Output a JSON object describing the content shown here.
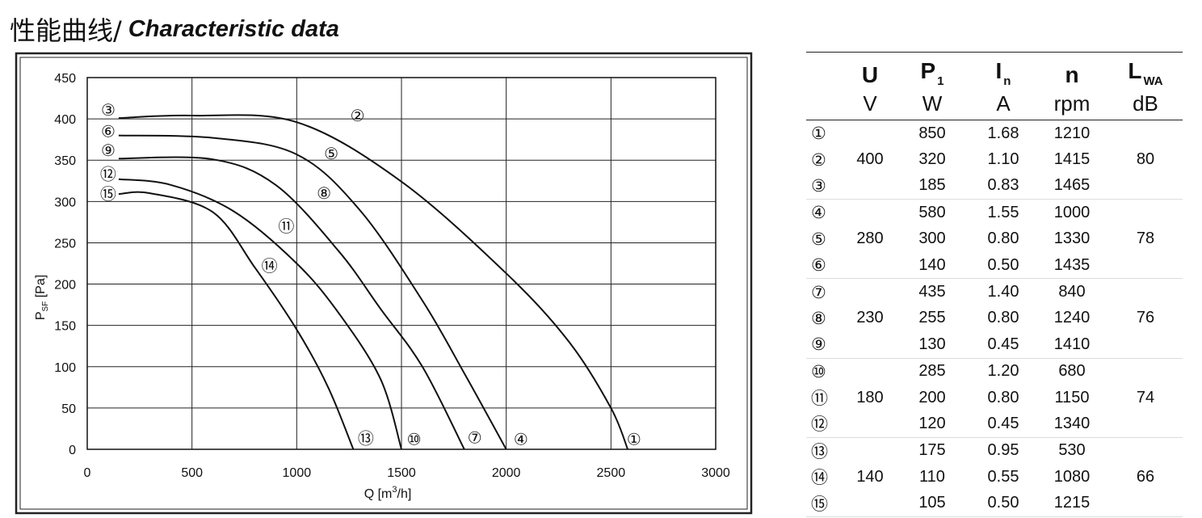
{
  "title": {
    "zh": "性能曲线/",
    "en": "Characteristic data"
  },
  "chart_data": {
    "type": "line",
    "xlabel_prefix": "Q [m",
    "xlabel_sup": "3",
    "xlabel_suffix": "/h]",
    "ylabel_main": "P",
    "ylabel_sub": "SF",
    "ylabel_suffix": " [Pa]",
    "xlim": [
      0,
      3000
    ],
    "ylim": [
      0,
      450
    ],
    "x_ticks": [
      0,
      500,
      1000,
      1500,
      2000,
      2500,
      3000
    ],
    "y_ticks": [
      0,
      50,
      100,
      150,
      200,
      250,
      300,
      350,
      400,
      450
    ],
    "grid": true,
    "series": [
      {
        "name": "①",
        "x": [
          150,
          500,
          1000,
          1500,
          2000,
          2300,
          2500,
          2580
        ],
        "y": [
          401,
          404,
          396,
          324,
          213,
          130,
          50,
          0
        ]
      },
      {
        "name": "④",
        "x": [
          150,
          600,
          1000,
          1300,
          1600,
          1800,
          2000
        ],
        "y": [
          380,
          377,
          357,
          290,
          180,
          92,
          0
        ]
      },
      {
        "name": "⑦",
        "x": [
          150,
          600,
          900,
          1200,
          1400,
          1600,
          1800
        ],
        "y": [
          352,
          351,
          320,
          240,
          170,
          100,
          0
        ]
      },
      {
        "name": "⑩",
        "x": [
          150,
          400,
          700,
          1000,
          1200,
          1400,
          1500
        ],
        "y": [
          327,
          320,
          288,
          225,
          165,
          85,
          0
        ]
      },
      {
        "name": "⑬",
        "x": [
          150,
          300,
          600,
          800,
          1000,
          1150,
          1270
        ],
        "y": [
          309,
          310,
          287,
          220,
          145,
          75,
          0
        ]
      }
    ],
    "curve_labels": [
      {
        "text": "①",
        "x": 2610,
        "y": 12
      },
      {
        "text": "②",
        "x": 1290,
        "y": 404
      },
      {
        "text": "③",
        "x": 100,
        "y": 411
      },
      {
        "text": "④",
        "x": 2070,
        "y": 12
      },
      {
        "text": "⑤",
        "x": 1165,
        "y": 358
      },
      {
        "text": "⑥",
        "x": 100,
        "y": 385
      },
      {
        "text": "⑦",
        "x": 1850,
        "y": 14
      },
      {
        "text": "⑧",
        "x": 1130,
        "y": 310
      },
      {
        "text": "⑨",
        "x": 100,
        "y": 362
      },
      {
        "text": "⑩",
        "x": 1560,
        "y": 12
      },
      {
        "text": "⑪",
        "x": 950,
        "y": 270
      },
      {
        "text": "⑫",
        "x": 100,
        "y": 333
      },
      {
        "text": "⑬",
        "x": 1330,
        "y": 13
      },
      {
        "text": "⑭",
        "x": 870,
        "y": 222
      },
      {
        "text": "⑮",
        "x": 100,
        "y": 309
      }
    ]
  },
  "table": {
    "headers": [
      {
        "main": "U",
        "sub": "",
        "unit": "V"
      },
      {
        "main": "P",
        "sub": "1",
        "unit": "W"
      },
      {
        "main": "I",
        "sub": "n",
        "unit": "A"
      },
      {
        "main": "n",
        "sub": "",
        "unit": "rpm"
      },
      {
        "main": "L",
        "sub": "WA",
        "unit": "dB"
      }
    ],
    "groups": [
      {
        "voltage": "400",
        "lwa": "80",
        "rows": [
          {
            "no": "①",
            "p1": "850",
            "in": "1.68",
            "n": "1210"
          },
          {
            "no": "②",
            "p1": "320",
            "in": "1.10",
            "n": "1415"
          },
          {
            "no": "③",
            "p1": "185",
            "in": "0.83",
            "n": "1465"
          }
        ]
      },
      {
        "voltage": "280",
        "lwa": "78",
        "rows": [
          {
            "no": "④",
            "p1": "580",
            "in": "1.55",
            "n": "1000"
          },
          {
            "no": "⑤",
            "p1": "300",
            "in": "0.80",
            "n": "1330"
          },
          {
            "no": "⑥",
            "p1": "140",
            "in": "0.50",
            "n": "1435"
          }
        ]
      },
      {
        "voltage": "230",
        "lwa": "76",
        "rows": [
          {
            "no": "⑦",
            "p1": "435",
            "in": "1.40",
            "n": "840"
          },
          {
            "no": "⑧",
            "p1": "255",
            "in": "0.80",
            "n": "1240"
          },
          {
            "no": "⑨",
            "p1": "130",
            "in": "0.45",
            "n": "1410"
          }
        ]
      },
      {
        "voltage": "180",
        "lwa": "74",
        "rows": [
          {
            "no": "⑩",
            "p1": "285",
            "in": "1.20",
            "n": "680"
          },
          {
            "no": "⑪",
            "p1": "200",
            "in": "0.80",
            "n": "1150"
          },
          {
            "no": "⑫",
            "p1": "120",
            "in": "0.45",
            "n": "1340"
          }
        ]
      },
      {
        "voltage": "140",
        "lwa": "66",
        "rows": [
          {
            "no": "⑬",
            "p1": "175",
            "in": "0.95",
            "n": "530"
          },
          {
            "no": "⑭",
            "p1": "110",
            "in": "0.55",
            "n": "1080"
          },
          {
            "no": "⑮",
            "p1": "105",
            "in": "0.50",
            "n": "1215"
          }
        ]
      }
    ]
  }
}
